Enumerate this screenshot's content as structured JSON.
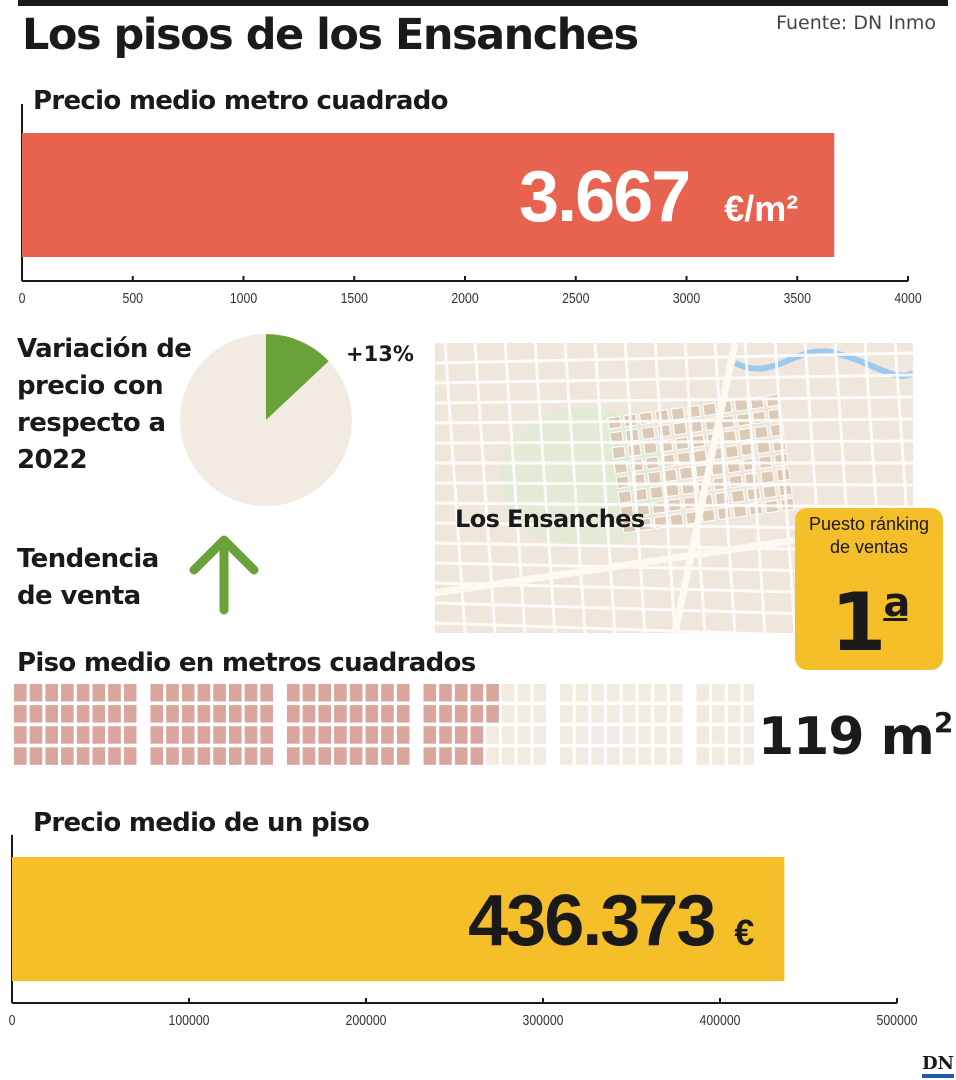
{
  "title": "Los pisos de los Ensanches",
  "source": "Fuente: DN Inmo",
  "logo": "DN",
  "colors": {
    "red": "#e8634f",
    "yellow": "#f5bf29",
    "green": "#6aa23a",
    "beige": "#f1ebe1",
    "pink": "#d9a59c",
    "pale": "#f1ebe1"
  },
  "chart_data": [
    {
      "type": "bar",
      "title": "Precio medio metro cuadrado",
      "categories": [
        "Los Ensanches"
      ],
      "values": [
        3667
      ],
      "value_label": "3.667",
      "unit": "€/m²",
      "xlim": [
        0,
        4000
      ],
      "ticks": [
        "0",
        "500",
        "1000",
        "1500",
        "2000",
        "2500",
        "3000",
        "3500",
        "4000"
      ],
      "tick_values": [
        0,
        500,
        1000,
        1500,
        2000,
        2500,
        3000,
        3500,
        4000
      ]
    },
    {
      "type": "pie",
      "title_lines": [
        "Variación de",
        "precio con",
        "respecto a",
        "2022"
      ],
      "values": [
        13,
        87
      ],
      "value_label": "+13%"
    },
    {
      "type": "waffle",
      "title": "Piso medio en metros cuadrados",
      "filled": 119,
      "total": 200,
      "value_label": "119",
      "unit": "m²"
    },
    {
      "type": "bar",
      "title": "Precio medio de un piso",
      "categories": [
        "Los Ensanches"
      ],
      "values": [
        436373
      ],
      "value_label": "436.373",
      "unit": "€",
      "xlim": [
        0,
        500000
      ],
      "ticks": [
        "0",
        "100000",
        "200000",
        "300000",
        "400000",
        "500000"
      ],
      "tick_values": [
        0,
        100000,
        200000,
        300000,
        400000,
        500000
      ]
    }
  ],
  "trend": {
    "title_lines": [
      "Tendencia",
      "de venta"
    ],
    "direction": "up",
    "icon": "arrow-up-icon"
  },
  "map": {
    "label": "Los Ensanches"
  },
  "ranking": {
    "label_lines": [
      "Puesto ránking",
      "de ventas"
    ],
    "value": "1",
    "suffix": "a"
  }
}
